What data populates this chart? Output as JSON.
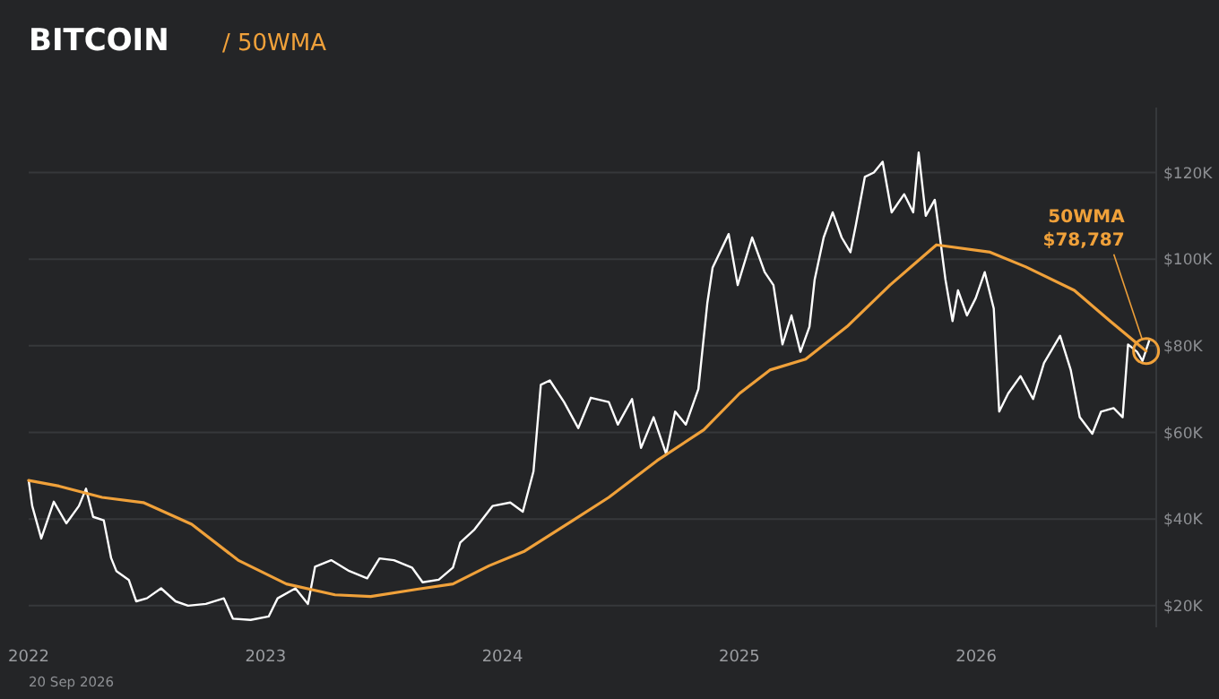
{
  "chart_data": {
    "type": "line",
    "title": "BITCOIN",
    "subtitle": "/ 50WMA",
    "xlim": [
      2022,
      2026.76
    ],
    "xticks": [
      2022,
      2023,
      2024,
      2025,
      2026
    ],
    "ylim": [
      15,
      135
    ],
    "yticks": [
      {
        "value": 20,
        "label": "$20K"
      },
      {
        "value": 40,
        "label": "$40K"
      },
      {
        "value": 60,
        "label": "$60K"
      },
      {
        "value": 80,
        "label": "$80K"
      },
      {
        "value": 100,
        "label": "$100K"
      },
      {
        "value": 120,
        "label": "$120K"
      }
    ],
    "grid": "y",
    "series": [
      {
        "color": "#ffffff",
        "x": [
          2022,
          2022.015,
          2022.053,
          2022.106,
          2022.159,
          2022.212,
          2022.242,
          2022.272,
          2022.317,
          2022.348,
          2022.37,
          2022.423,
          2022.454,
          2022.499,
          2022.559,
          2022.62,
          2022.673,
          2022.748,
          2022.824,
          2022.862,
          2022.937,
          2023.013,
          2023.051,
          2023.126,
          2023.179,
          2023.209,
          2023.277,
          2023.353,
          2023.429,
          2023.481,
          2023.542,
          2023.618,
          2023.663,
          2023.731,
          2023.791,
          2023.822,
          2023.882,
          2023.958,
          2024.033,
          2024.086,
          2024.131,
          2024.162,
          2024.2,
          2024.26,
          2024.32,
          2024.373,
          2024.449,
          2024.487,
          2024.547,
          2024.585,
          2024.638,
          2024.691,
          2024.729,
          2024.774,
          2024.827,
          2024.865,
          2024.887,
          2024.955,
          2024.993,
          2025.054,
          2025.107,
          2025.144,
          2025.182,
          2025.22,
          2025.258,
          2025.296,
          2025.318,
          2025.356,
          2025.394,
          2025.432,
          2025.469,
          2025.492,
          2025.53,
          2025.568,
          2025.605,
          2025.643,
          2025.696,
          2025.734,
          2025.757,
          2025.787,
          2025.825,
          2025.847,
          2025.87,
          2025.9,
          2025.923,
          2025.961,
          2025.998,
          2026.036,
          2026.074,
          2026.097,
          2026.135,
          2026.187,
          2026.24,
          2026.286,
          2026.354,
          2026.399,
          2026.437,
          2026.49,
          2026.527,
          2026.58,
          2026.618,
          2026.641,
          2026.679,
          2026.702,
          2026.732
        ],
        "values": [
          48.9,
          43,
          35.5,
          44,
          39,
          43,
          47,
          40.5,
          39.7,
          31,
          28,
          25.9,
          21,
          21.7,
          24,
          21,
          20,
          20.4,
          21.7,
          17,
          16.7,
          17.5,
          21.7,
          24,
          20.4,
          29,
          30.5,
          28,
          26.3,
          30.9,
          30.5,
          28.8,
          25.4,
          26,
          28.8,
          34.6,
          37.6,
          43,
          43.8,
          41.7,
          51,
          71,
          72,
          67,
          61,
          68,
          67,
          61.8,
          67.7,
          56.4,
          63.5,
          55,
          64.8,
          61.8,
          70,
          89.9,
          98,
          105.8,
          94,
          105,
          97,
          94,
          80.3,
          87,
          78.6,
          84.4,
          95.3,
          105,
          110.8,
          105,
          101.6,
          107.9,
          119,
          120,
          122.5,
          110.8,
          115,
          110.8,
          124.6,
          110,
          113.7,
          105,
          95.3,
          85.7,
          92.8,
          87,
          91,
          97,
          88.6,
          64.8,
          69,
          73,
          67.7,
          76,
          82.3,
          74.4,
          63.5,
          59.7,
          64.8,
          65.6,
          63.5,
          80.3,
          78.6,
          76.5,
          81.5
        ]
      },
      {
        "color": "#f0a13a",
        "x": [
          2022,
          2022.128,
          2022.31,
          2022.484,
          2022.688,
          2022.884,
          2023.088,
          2023.293,
          2023.444,
          2023.64,
          2023.791,
          2023.943,
          2024.094,
          2024.298,
          2024.449,
          2024.653,
          2024.85,
          2025.001,
          2025.129,
          2025.28,
          2025.454,
          2025.636,
          2025.832,
          2026.059,
          2026.21,
          2026.414,
          2026.565,
          2026.717
        ],
        "values": [
          48.9,
          47.6,
          45,
          43.8,
          38.8,
          30.5,
          25,
          22.5,
          22.1,
          23.8,
          25,
          29.2,
          32.6,
          39.7,
          45,
          53.5,
          60.6,
          69,
          74.4,
          76.9,
          84.4,
          94,
          103.3,
          101.6,
          98.2,
          92.8,
          85.7,
          78.8
        ]
      }
    ],
    "annotations": [
      {
        "text": "50WMA\n$78,787",
        "x": 2026.717,
        "y": 78.787
      },
      "20 Sep 2026"
    ]
  }
}
